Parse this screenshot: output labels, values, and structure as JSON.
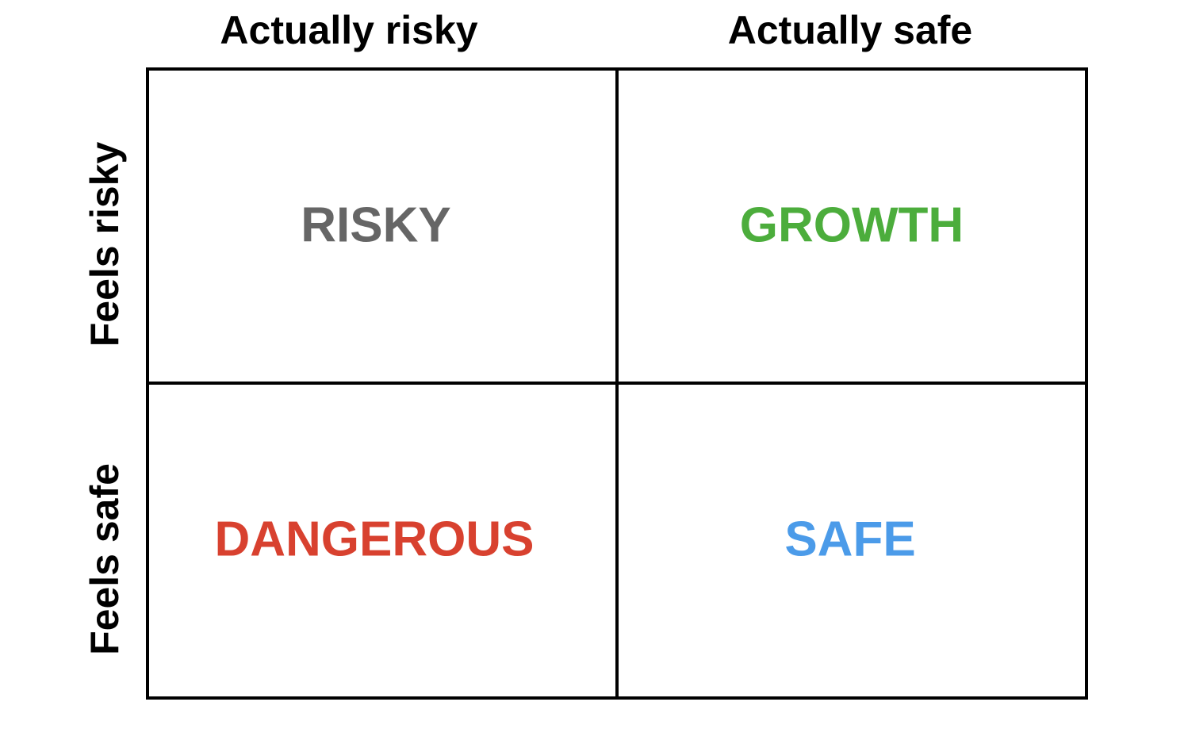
{
  "matrix": {
    "columns": [
      "Actually risky",
      "Actually safe"
    ],
    "rows": [
      "Feels risky",
      "Feels safe"
    ],
    "cells": [
      [
        {
          "label": "RISKY",
          "color": "#666666"
        },
        {
          "label": "GROWTH",
          "color": "#4cad3c"
        }
      ],
      [
        {
          "label": "DANGEROUS",
          "color": "#d8412f"
        },
        {
          "label": "SAFE",
          "color": "#4b9be9"
        }
      ]
    ]
  }
}
